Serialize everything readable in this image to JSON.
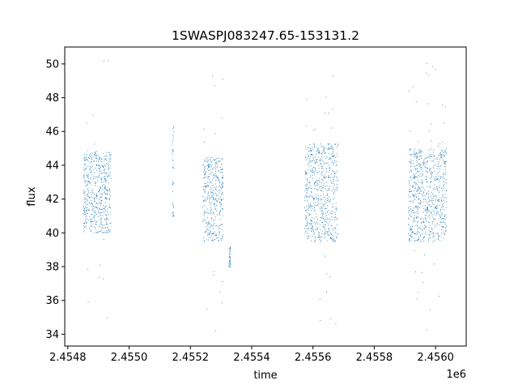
{
  "chart_data": {
    "type": "scatter",
    "title": "1SWASPJ083247.65-153131.2",
    "xlabel": "time",
    "ylabel": "flux",
    "x_offset_label": "1e6",
    "xlim": [
      2454790,
      2456100
    ],
    "ylim": [
      33.3,
      51.0
    ],
    "x_ticks": [
      2454800,
      2455000,
      2455200,
      2455400,
      2455600,
      2455800,
      2456000
    ],
    "x_tick_labels": [
      "2.4548",
      "2.4550",
      "2.4552",
      "2.4554",
      "2.4556",
      "2.4558",
      "2.4560"
    ],
    "y_ticks": [
      34,
      36,
      38,
      40,
      42,
      44,
      46,
      48,
      50
    ],
    "y_tick_labels": [
      "34",
      "36",
      "38",
      "40",
      "42",
      "44",
      "46",
      "48",
      "50"
    ],
    "grid": false,
    "legend": "none",
    "marker_color": "#1f77b4",
    "series": [
      {
        "observing_seasons": [
          {
            "x_start": 2454850,
            "x_end": 2454940,
            "flux_low": 40.0,
            "flux_high": 44.8,
            "outlier_low": 34.4,
            "outlier_high": 50.2
          },
          {
            "x_start": 2455140,
            "x_end": 2455145,
            "flux_low": 41.0,
            "flux_high": 46.4,
            "outlier_low": 41.0,
            "outlier_high": 46.4
          },
          {
            "x_start": 2455240,
            "x_end": 2455305,
            "flux_low": 39.5,
            "flux_high": 44.5,
            "outlier_low": 34.2,
            "outlier_high": 50.0
          },
          {
            "x_start": 2455325,
            "x_end": 2455330,
            "flux_low": 38.0,
            "flux_high": 39.2,
            "outlier_low": 38.0,
            "outlier_high": 39.2
          },
          {
            "x_start": 2455572,
            "x_end": 2455680,
            "flux_low": 39.5,
            "flux_high": 45.3,
            "outlier_low": 34.6,
            "outlier_high": 49.3
          },
          {
            "x_start": 2455910,
            "x_end": 2456035,
            "flux_low": 39.5,
            "flux_high": 45.0,
            "outlier_low": 34.2,
            "outlier_high": 50.2
          }
        ]
      }
    ]
  }
}
